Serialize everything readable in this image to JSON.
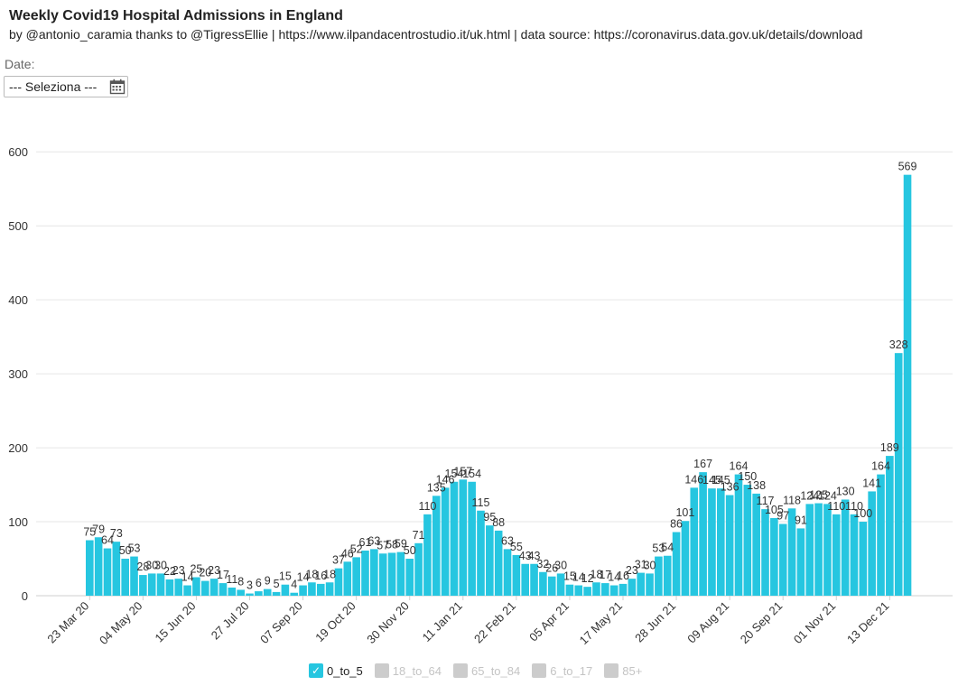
{
  "header": {
    "title": "Weekly Covid19 Hospital Admissions in England",
    "subtitle": "by @antonio_caramia thanks to @TigressEllie | https://www.ilpandacentrostudio.it/uk.html | data source: https://coronavirus.data.gov.uk/details/download"
  },
  "date_filter": {
    "label": "Date:",
    "value": "--- Seleziona ---"
  },
  "legend": {
    "items": [
      {
        "label": "0_to_5",
        "active": true,
        "color": "#26C6E0"
      },
      {
        "label": "18_to_64",
        "active": false,
        "color": "#cccccc"
      },
      {
        "label": "65_to_84",
        "active": false,
        "color": "#cccccc"
      },
      {
        "label": "6_to_17",
        "active": false,
        "color": "#cccccc"
      },
      {
        "label": "85+",
        "active": false,
        "color": "#cccccc"
      }
    ]
  },
  "colors": {
    "bar": "#26C6E0",
    "grid": "#e6e6e6",
    "axis_text": "#333333",
    "inactive": "#cccccc"
  },
  "chart_data": {
    "type": "bar",
    "title": "Weekly Covid19 Hospital Admissions in England",
    "xlabel": "",
    "ylabel": "",
    "ylim": [
      0,
      640
    ],
    "yticks": [
      0,
      100,
      200,
      300,
      400,
      500,
      600
    ],
    "xtick_labels": [
      "23 Mar 20",
      "04 May 20",
      "15 Jun 20",
      "27 Jul 20",
      "07 Sep 20",
      "19 Oct 20",
      "30 Nov 20",
      "11 Jan 21",
      "22 Feb 21",
      "05 Apr 21",
      "17 May 21",
      "28 Jun 21",
      "09 Aug 21",
      "20 Sep 21",
      "01 Nov 21",
      "13 Dec 21"
    ],
    "xtick_every": 6,
    "series": [
      {
        "name": "0_to_5",
        "values": [
          75,
          79,
          64,
          73,
          50,
          53,
          28,
          30,
          30,
          22,
          23,
          14,
          25,
          20,
          23,
          17,
          11,
          8,
          3,
          6,
          9,
          5,
          15,
          4,
          14,
          18,
          16,
          18,
          37,
          46,
          52,
          61,
          63,
          57,
          58,
          59,
          50,
          71,
          110,
          135,
          146,
          154,
          157,
          154,
          115,
          95,
          88,
          63,
          55,
          43,
          43,
          32,
          26,
          30,
          15,
          14,
          12,
          18,
          17,
          14,
          16,
          23,
          31,
          30,
          53,
          54,
          86,
          101,
          146,
          167,
          145,
          145,
          136,
          164,
          150,
          138,
          117,
          105,
          97,
          118,
          91,
          124,
          125,
          124,
          110,
          130,
          110,
          100,
          141,
          164,
          189,
          328,
          569
        ]
      }
    ]
  }
}
